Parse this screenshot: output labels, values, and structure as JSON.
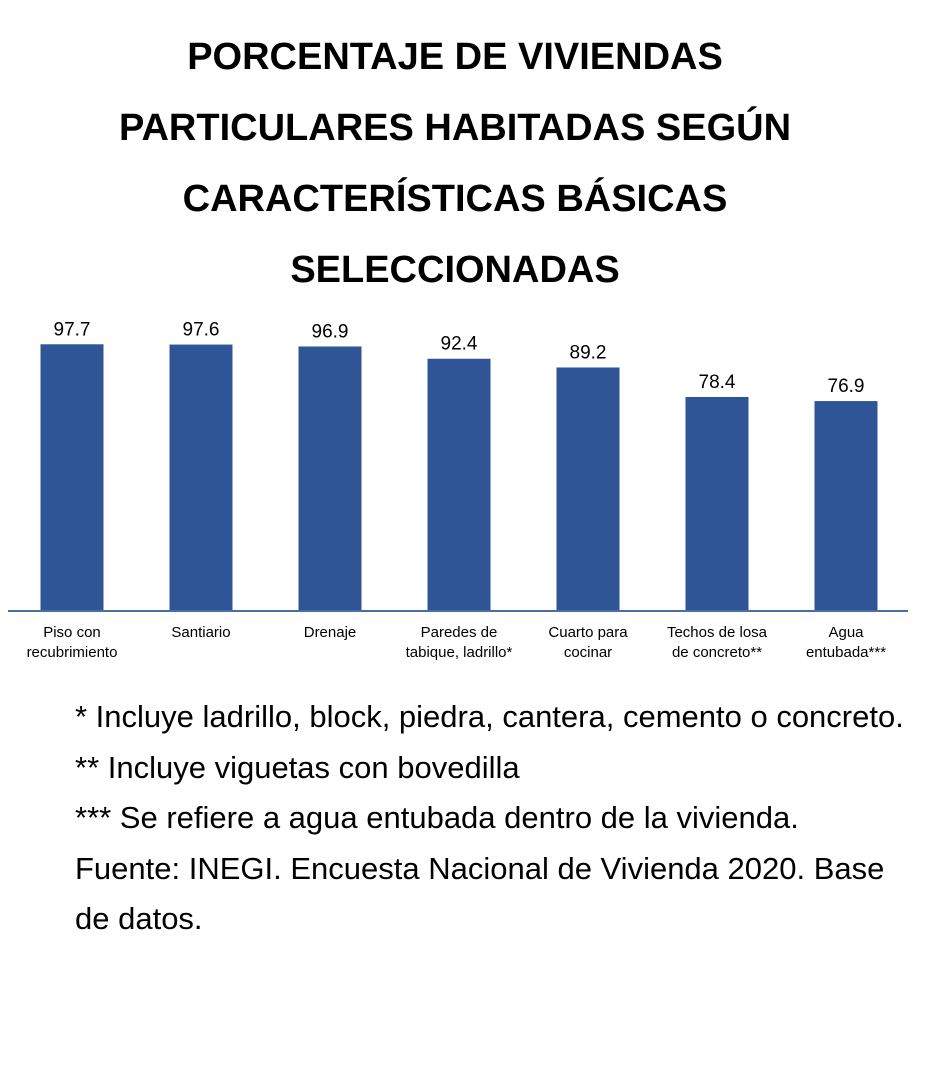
{
  "chart_data": {
    "type": "bar",
    "title": "PORCENTAJE DE VIVIENDAS PARTICULARES HABITADAS SEGÚN CARACTERÍSTICAS BÁSICAS SELECCIONADAS",
    "categories": [
      [
        "Piso con",
        "recubrimiento"
      ],
      [
        "Santiario"
      ],
      [
        "Drenaje"
      ],
      [
        "Paredes de",
        "tabique, ladrillo*"
      ],
      [
        "Cuarto para",
        "cocinar"
      ],
      [
        "Techos de losa",
        "de concreto**"
      ],
      [
        "Agua",
        "entubada***"
      ]
    ],
    "values": [
      97.7,
      97.6,
      96.9,
      92.4,
      89.2,
      78.4,
      76.9
    ],
    "value_labels": [
      "97.7",
      "97.6",
      "96.9",
      "92.4",
      "89.2",
      "78.4",
      "76.9"
    ],
    "ylim": [
      0,
      100
    ],
    "grid": false,
    "legend": "none",
    "bar_color": "#2f5597",
    "axis_color": "#4a6fa5"
  },
  "notes": [
    "* Incluye ladrillo, block, piedra, cantera, cemento o concreto.",
    "** Incluye viguetas con bovedilla",
    "*** Se refiere a agua entubada dentro de la vivienda.",
    "Fuente: INEGI. Encuesta Nacional de Vivienda 2020. Base de datos."
  ]
}
